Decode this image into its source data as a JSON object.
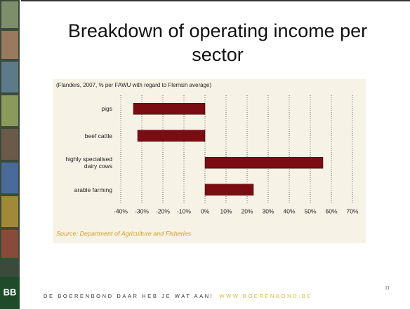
{
  "slide": {
    "title": "Breakdown of operating income per sector",
    "footer": "DE BOERENBOND DAAR HEB JE WAT AAN!",
    "footer_url": "WWW.BOERENBOND.BE",
    "page_number": "11",
    "logo": "BB"
  },
  "chart_data": {
    "type": "barh",
    "subtitle": "(Flanders, 2007, % per FAWU with regard to Flemish average)",
    "source": "Source: Department of Agriculture and Fisheries",
    "categories": [
      "pigs",
      "beef cattle",
      "highly specialised dairy cows",
      "arable farming"
    ],
    "values": [
      -34,
      -32,
      56,
      23
    ],
    "color": "#7a0c12",
    "xlim": [
      -40,
      70
    ],
    "xticks": [
      {
        "value": -40,
        "label": "-40%"
      },
      {
        "value": -30,
        "label": "-30%"
      },
      {
        "value": -20,
        "label": "-20%"
      },
      {
        "value": -10,
        "label": "-10%"
      },
      {
        "value": 0,
        "label": "0%"
      },
      {
        "value": 10,
        "label": "10%"
      },
      {
        "value": 20,
        "label": "20%"
      },
      {
        "value": 30,
        "label": "30%"
      },
      {
        "value": 40,
        "label": "40%"
      },
      {
        "value": 50,
        "label": "50%"
      },
      {
        "value": 60,
        "label": "60%"
      },
      {
        "value": 70,
        "label": "70%"
      }
    ],
    "grid": true
  }
}
